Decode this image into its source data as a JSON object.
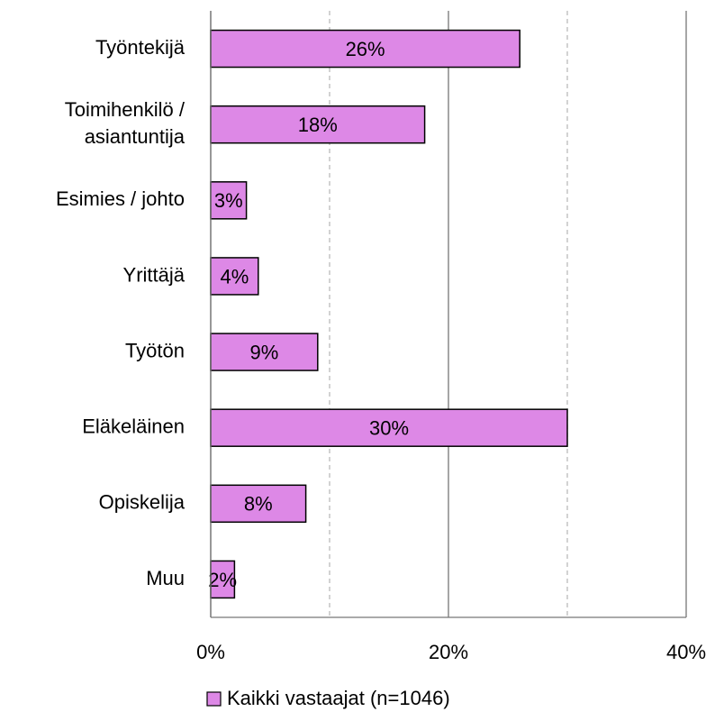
{
  "chart_data": {
    "type": "hbar",
    "categories": [
      "Työntekijä",
      [
        "Toimihenkilö /",
        "asiantuntija"
      ],
      "Esimies / johto",
      "Yrittäjä",
      "Työtön",
      "Eläkeläinen",
      "Opiskelija",
      "Muu"
    ],
    "series": [
      {
        "name": "Kaikki vastaajat (n=1046)",
        "color": "#dd88e6",
        "values": [
          26,
          18,
          3,
          4,
          9,
          30,
          8,
          2
        ],
        "value_labels": [
          "26%",
          "18%",
          "3%",
          "4%",
          "9%",
          "30%",
          "8%",
          "2%"
        ]
      }
    ],
    "xlim": [
      0,
      40
    ],
    "xticks": [
      {
        "value": 0,
        "label": "0%"
      },
      {
        "value": 20,
        "label": "20%"
      },
      {
        "value": 40,
        "label": "40%"
      }
    ],
    "minor_grid": [
      10,
      30
    ],
    "grid": true,
    "legend": "bottom"
  }
}
